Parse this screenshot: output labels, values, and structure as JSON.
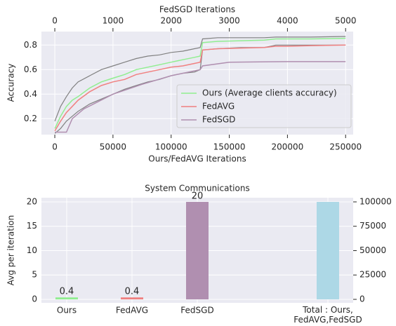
{
  "chart_data": [
    {
      "type": "line",
      "xlabel": "Ours/FedAVG Iterations",
      "x2label": "FedSGD Iterations",
      "ylabel": "Accuracy",
      "x": [
        0,
        5000,
        10000,
        15000,
        20000,
        30000,
        40000,
        50000,
        60000,
        70000,
        80000,
        90000,
        100000,
        110000,
        120000,
        125000,
        127000,
        140000,
        160000,
        180000,
        190000,
        200000,
        220000,
        250000
      ],
      "xlim": [
        -11500,
        256500
      ],
      "xticks": [
        0,
        50000,
        100000,
        150000,
        200000,
        250000
      ],
      "x2lim": [
        -230,
        5130
      ],
      "x2ticks": [
        0,
        1000,
        2000,
        3000,
        4000,
        5000
      ],
      "ylim": [
        0.07,
        0.91
      ],
      "yticks": [
        0.2,
        0.4,
        0.6,
        0.8
      ],
      "grid": true,
      "legend": "lower right",
      "series": [
        {
          "color": "#808080",
          "values": [
            0.18,
            0.3,
            0.38,
            0.45,
            0.5,
            0.55,
            0.6,
            0.63,
            0.66,
            0.69,
            0.71,
            0.72,
            0.74,
            0.75,
            0.77,
            0.78,
            0.85,
            0.86,
            0.86,
            0.86,
            0.865,
            0.865,
            0.865,
            0.87
          ]
        },
        {
          "color": "#808080",
          "values": [
            0.08,
            0.12,
            0.18,
            0.22,
            0.26,
            0.32,
            0.36,
            0.4,
            0.44,
            0.47,
            0.5,
            0.52,
            0.55,
            0.57,
            0.58,
            0.6,
            0.76,
            0.77,
            0.78,
            0.78,
            0.8,
            0.8,
            0.8,
            0.8
          ]
        },
        {
          "name": "Ours (Average clients accuracy)",
          "color": "#90ee90",
          "values": [
            0.12,
            0.22,
            0.3,
            0.35,
            0.38,
            0.45,
            0.5,
            0.53,
            0.56,
            0.6,
            0.62,
            0.64,
            0.66,
            0.68,
            0.7,
            0.71,
            0.82,
            0.83,
            0.835,
            0.84,
            0.85,
            0.85,
            0.85,
            0.855
          ]
        },
        {
          "name": "FedAVG",
          "color": "#f08080",
          "values": [
            0.1,
            0.18,
            0.25,
            0.3,
            0.35,
            0.42,
            0.47,
            0.5,
            0.52,
            0.56,
            0.58,
            0.6,
            0.62,
            0.63,
            0.65,
            0.66,
            0.76,
            0.77,
            0.775,
            0.78,
            0.79,
            0.79,
            0.795,
            0.8
          ]
        },
        {
          "name": "FedSGD",
          "color": "#b08fb0",
          "axis": "x2",
          "x": [
            0,
            200,
            300,
            500,
            1000,
            1500,
            2000,
            2500,
            2540,
            3000,
            4000,
            5000
          ],
          "values": [
            0.09,
            0.09,
            0.2,
            0.28,
            0.4,
            0.48,
            0.55,
            0.6,
            0.63,
            0.66,
            0.665,
            0.665
          ]
        }
      ]
    },
    {
      "type": "bar",
      "title": "System Communications",
      "ylabel": "Avg per iteration",
      "categories": [
        "Ours",
        "FedAVG",
        "FedSGD",
        null,
        "Total : Ours,\nFedAVG,FedSGD"
      ],
      "ylim": [
        -0.72,
        20.86
      ],
      "yticks": [
        0,
        5,
        10,
        15,
        20
      ],
      "y2lim": [
        -3600,
        104300
      ],
      "y2ticks": [
        0,
        25000,
        50000,
        75000,
        100000
      ],
      "grid": true,
      "series": [
        {
          "colors": [
            "#90ee90",
            "#f08080",
            "#b08fb0",
            null,
            null
          ],
          "values": [
            0.4,
            0.4,
            20,
            null,
            null
          ],
          "data_labels": true
        },
        {
          "axis": "y2",
          "colors": [
            null,
            null,
            null,
            null,
            "#add8e6"
          ],
          "values": [
            null,
            null,
            null,
            null,
            100000
          ]
        }
      ]
    }
  ]
}
